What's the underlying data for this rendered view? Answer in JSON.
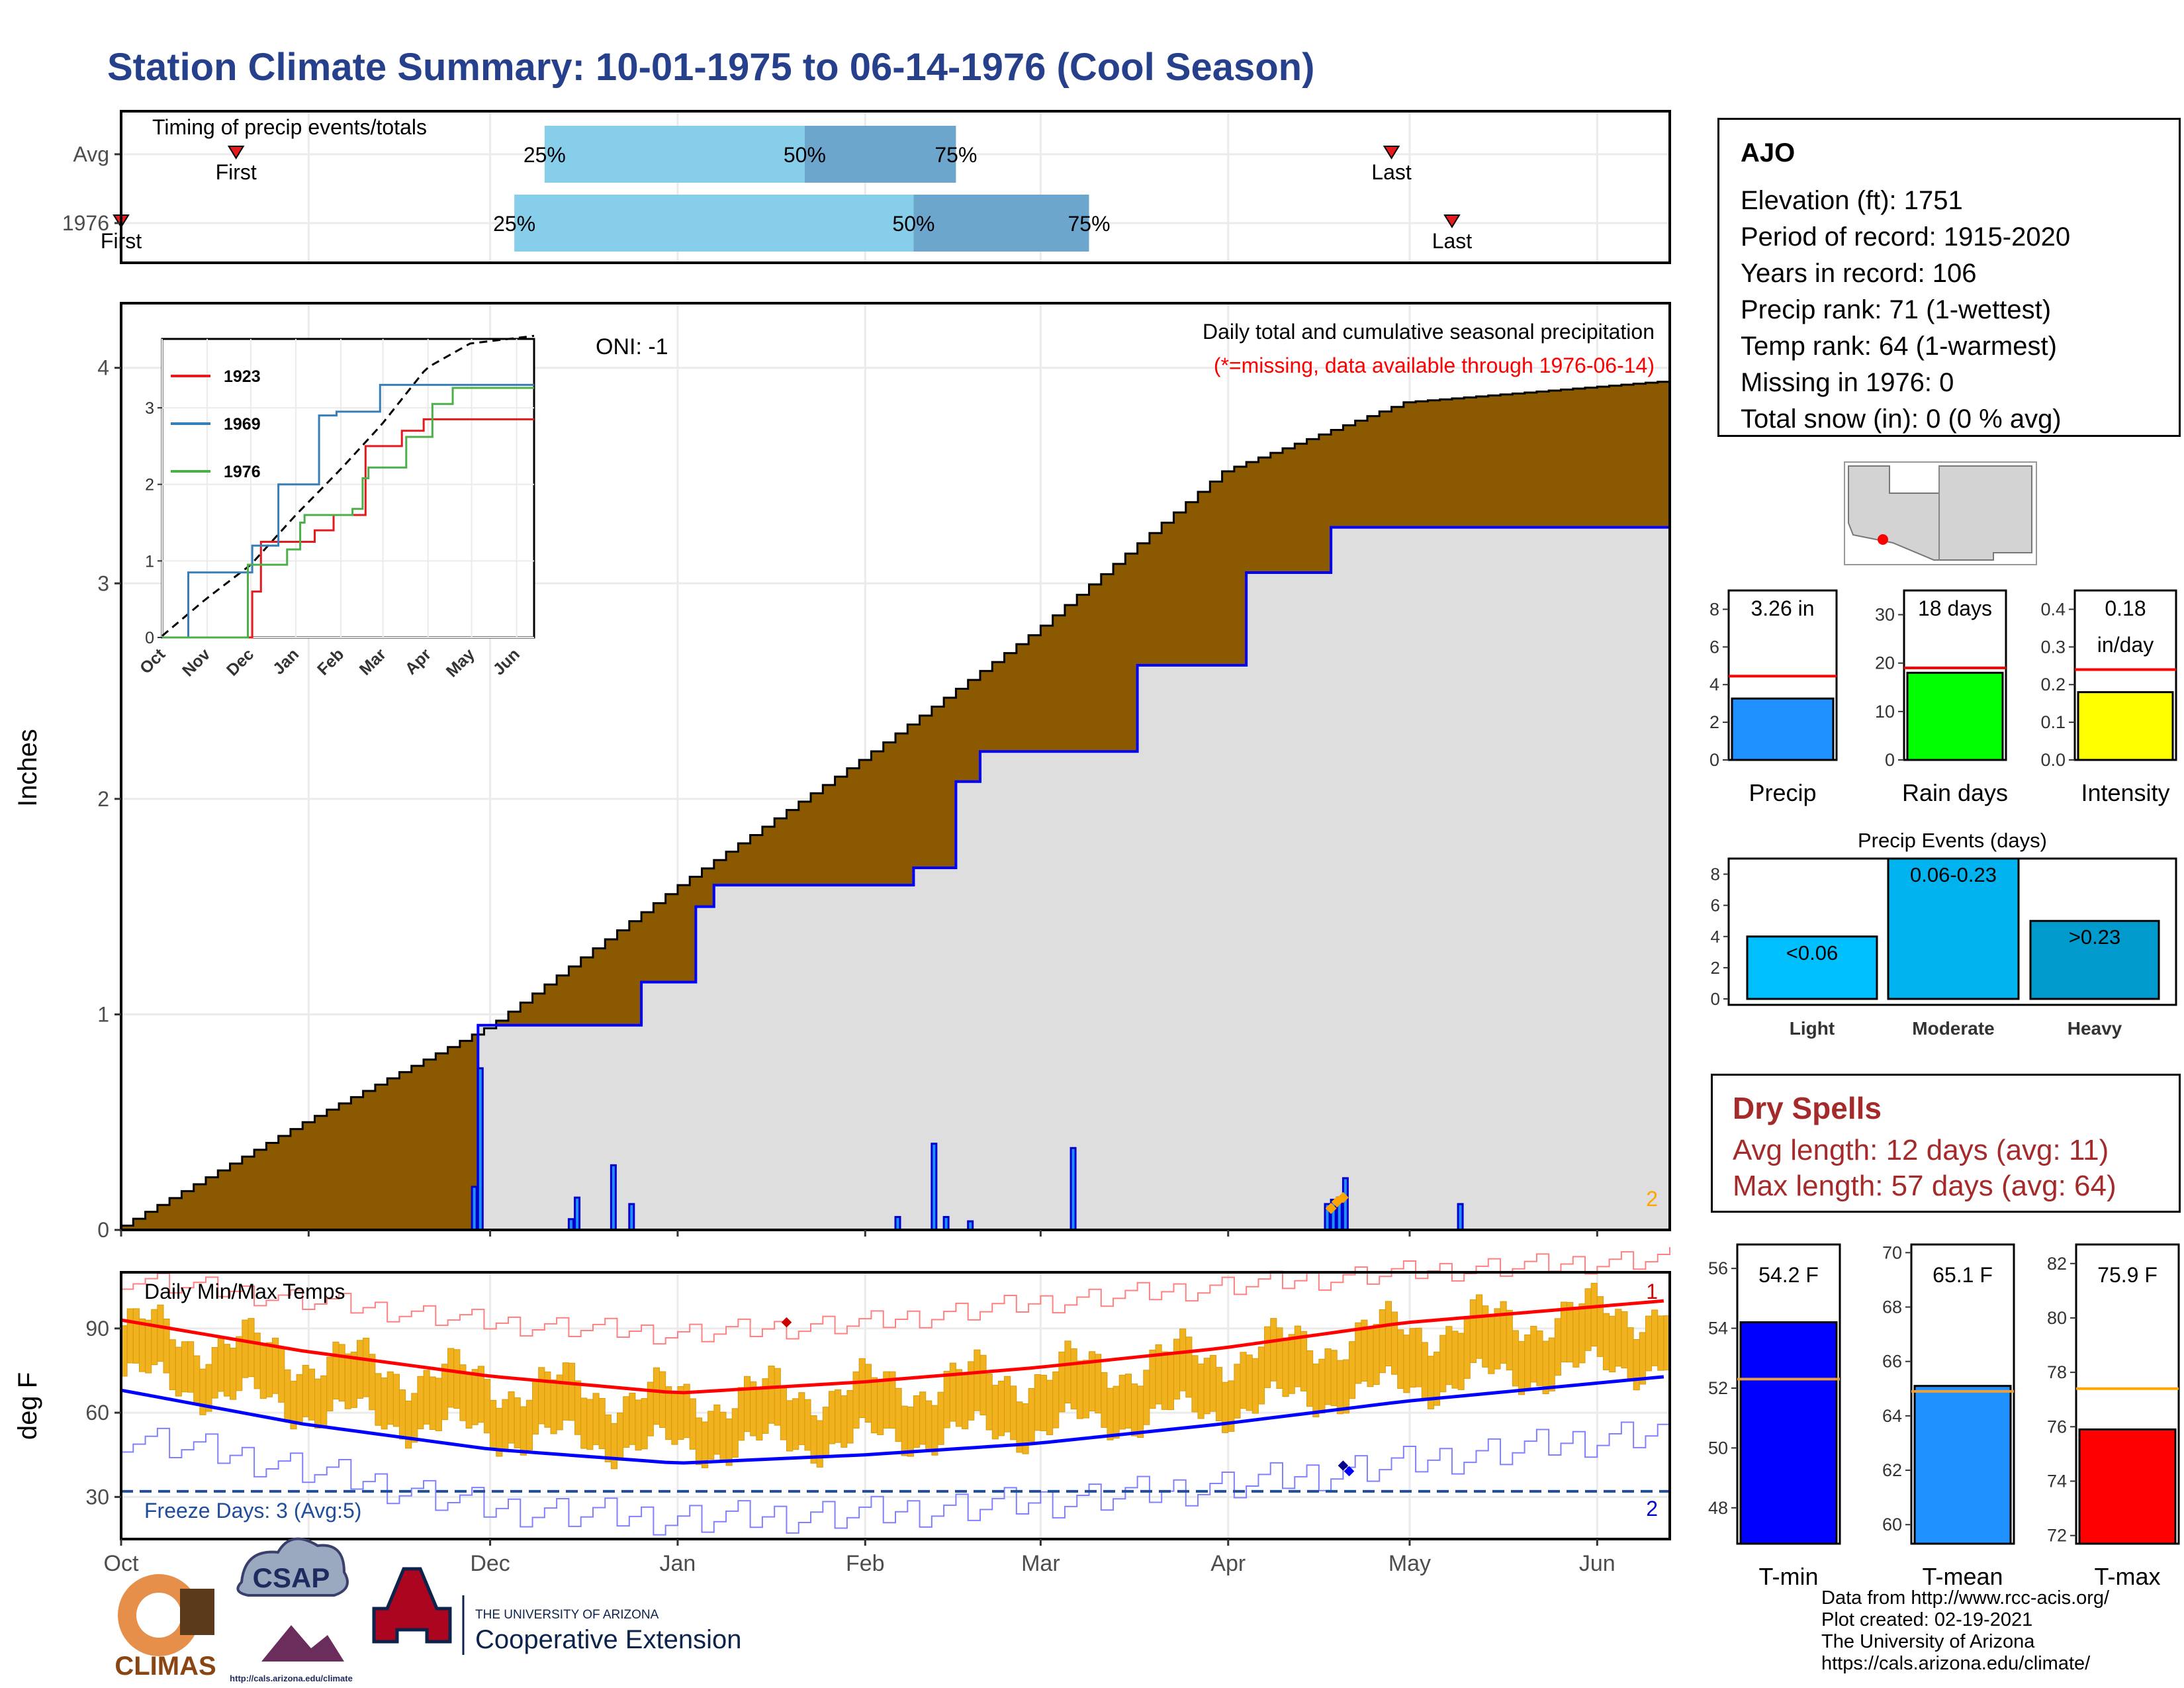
{
  "title": "Station Climate Summary: 10-01-1975 to 06-14-1976 (Cool Season)",
  "timing_panel": {
    "title": "Timing of precip events/totals",
    "rows": [
      {
        "label": "Avg",
        "first_label": "First",
        "last_label": "Last",
        "p25": "25%",
        "p50": "50%",
        "p75": "75%"
      },
      {
        "label": "1976",
        "first_label": "First",
        "last_label": "Last",
        "p25": "25%",
        "p50": "50%",
        "p75": "75%"
      }
    ],
    "timing_days": [
      {
        "first": 19,
        "p25": 70,
        "p50": 113,
        "p75": 138,
        "last": 210
      },
      {
        "first": 0,
        "p25": 65,
        "p50": 131,
        "p75": 160,
        "last": 220
      }
    ]
  },
  "precip_panel": {
    "ylabel": "Inches",
    "oni": "ONI: -1",
    "caption": "Daily total and cumulative seasonal precipitation",
    "missing_note": "(*=missing, data available through 1976-06-14)",
    "corner_count": "2",
    "yticks": [
      "0",
      "1",
      "2",
      "3",
      "4"
    ]
  },
  "inset": {
    "months": [
      "Oct",
      "Nov",
      "Dec",
      "Jan",
      "Feb",
      "Mar",
      "Apr",
      "May",
      "Jun"
    ],
    "yticks": [
      "0",
      "1",
      "2",
      "3"
    ],
    "legend": [
      "1923",
      "1969",
      "1976"
    ]
  },
  "temp_panel": {
    "ylabel": "deg F",
    "title": "Daily Min/Max Temps",
    "freeze_text": "Freeze Days: 3 (Avg:5)",
    "record_high_count": "1",
    "record_low_count": "2",
    "yticks": [
      "30",
      "60",
      "90"
    ]
  },
  "months": [
    "Oct",
    "Nov",
    "Dec",
    "Jan",
    "Feb",
    "Mar",
    "Apr",
    "May",
    "Jun"
  ],
  "station": {
    "name": "AJO",
    "lines": [
      "Elevation (ft): 1751",
      "Period of record: 1915-2020",
      "Years in record: 106",
      "Precip rank: 71 (1-wettest)",
      "Temp rank: 64 (1-warmest)",
      "Missing in 1976: 0",
      "Total snow (in): 0 (0 % avg)"
    ]
  },
  "mini_bars": [
    {
      "name": "Precip",
      "value_label": "3.26 in",
      "yticks": [
        "0",
        "2",
        "4",
        "6",
        "8"
      ],
      "color": "#1e90ff"
    },
    {
      "name": "Rain days",
      "value_label": "18 days",
      "yticks": [
        "0",
        "10",
        "20",
        "30"
      ],
      "color": "#00ff00"
    },
    {
      "name": "Intensity",
      "value_label": "0.18",
      "value_label2": "in/day",
      "yticks": [
        "0.0",
        "0.1",
        "0.2",
        "0.3",
        "0.4"
      ],
      "color": "#ffff00"
    }
  ],
  "precip_events": {
    "title": "Precip Events (days)",
    "yticks": [
      "0",
      "2",
      "4",
      "6",
      "8"
    ],
    "bars": [
      {
        "label": "Light",
        "value_label": "<0.06",
        "color": "#00bfff"
      },
      {
        "label": "Moderate",
        "value_label": "0.06-0.23",
        "color": "#00b2ee"
      },
      {
        "label": "Heavy",
        "value_label": ">0.23",
        "color": "#009acd"
      }
    ]
  },
  "dry_spells": {
    "title": "Dry Spells",
    "avg": "Avg length: 12 days (avg: 11)",
    "max": "Max length: 57 days (avg: 64)"
  },
  "temp_bars": [
    {
      "name": "T-min",
      "value_label": "54.2 F",
      "yticks": [
        "48",
        "50",
        "52",
        "54",
        "56"
      ],
      "color": "#0000ff"
    },
    {
      "name": "T-mean",
      "value_label": "65.1 F",
      "yticks": [
        "60",
        "62",
        "64",
        "66",
        "68",
        "70"
      ],
      "color": "#1e90ff"
    },
    {
      "name": "T-max",
      "value_label": "75.9 F",
      "yticks": [
        "72",
        "74",
        "76",
        "78",
        "80",
        "82"
      ],
      "color": "#ff0000"
    }
  ],
  "credits": [
    "Data from http://www.rcc-acis.org/",
    "Plot created: 02-19-2021",
    "The University of Arizona",
    "https://cals.arizona.edu/climate/"
  ],
  "logos": {
    "climas": "CLIMAS",
    "csap": "CSAP",
    "csap_url": "http://cals.arizona.edu/climate",
    "ua_small": "THE UNIVERSITY OF ARIZONA",
    "ua_big": "Cooperative Extension"
  },
  "chart_data": [
    {
      "type": "area",
      "title": "Daily total and cumulative seasonal precipitation",
      "ylabel": "Inches",
      "ylim": [
        0,
        4.3
      ],
      "x_unit": "days since 1975-10-01",
      "series": [
        {
          "name": "Average cumulative",
          "x": [
            0,
            30,
            61,
            92,
            123,
            151,
            182,
            212,
            256
          ],
          "values": [
            0.02,
            0.5,
            0.95,
            1.6,
            2.2,
            2.78,
            3.52,
            3.84,
            3.94
          ]
        },
        {
          "name": "1976 cumulative",
          "x": [
            0,
            58,
            59,
            80,
            86,
            95,
            98,
            108,
            130,
            131,
            138,
            142,
            151,
            168,
            175,
            186,
            200,
            256
          ],
          "values": [
            0,
            0,
            0.95,
            0.95,
            1.15,
            1.5,
            1.6,
            1.6,
            1.6,
            1.68,
            2.08,
            2.22,
            2.22,
            2.62,
            2.62,
            3.05,
            3.26,
            3.26
          ]
        }
      ],
      "daily_precip": {
        "x": [
          58,
          59,
          74,
          75,
          81,
          84,
          128,
          134,
          136,
          140,
          157,
          199,
          200,
          201,
          202,
          221
        ],
        "values": [
          0.2,
          0.75,
          0.05,
          0.15,
          0.3,
          0.12,
          0.06,
          0.4,
          0.06,
          0.04,
          0.38,
          0.12,
          0.14,
          0.15,
          0.24,
          0.12
        ]
      }
    },
    {
      "type": "line",
      "title": "Daily Min/Max Temps",
      "ylabel": "deg F",
      "ylim": [
        15,
        110
      ],
      "series": [
        {
          "name": "Average max",
          "x": [
            0,
            30,
            61,
            92,
            123,
            151,
            182,
            212,
            256
          ],
          "values": [
            93,
            82,
            73,
            67,
            71,
            76,
            83,
            92,
            100
          ]
        },
        {
          "name": "Average min",
          "x": [
            0,
            30,
            61,
            92,
            123,
            151,
            182,
            212,
            256
          ],
          "values": [
            68,
            56,
            47,
            42,
            45,
            49,
            56,
            64,
            73
          ]
        },
        {
          "name": "Record max",
          "x": [
            0,
            30,
            61,
            92,
            123,
            151,
            182,
            212,
            256
          ],
          "values": [
            108,
            100,
            92,
            88,
            92,
            99,
            105,
            110,
            115
          ]
        },
        {
          "name": "Record min",
          "x": [
            0,
            30,
            61,
            92,
            123,
            151,
            182,
            212,
            256
          ],
          "values": [
            52,
            40,
            26,
            22,
            24,
            28,
            34,
            42,
            54
          ]
        }
      ],
      "freeze_line": 32
    }
  ]
}
